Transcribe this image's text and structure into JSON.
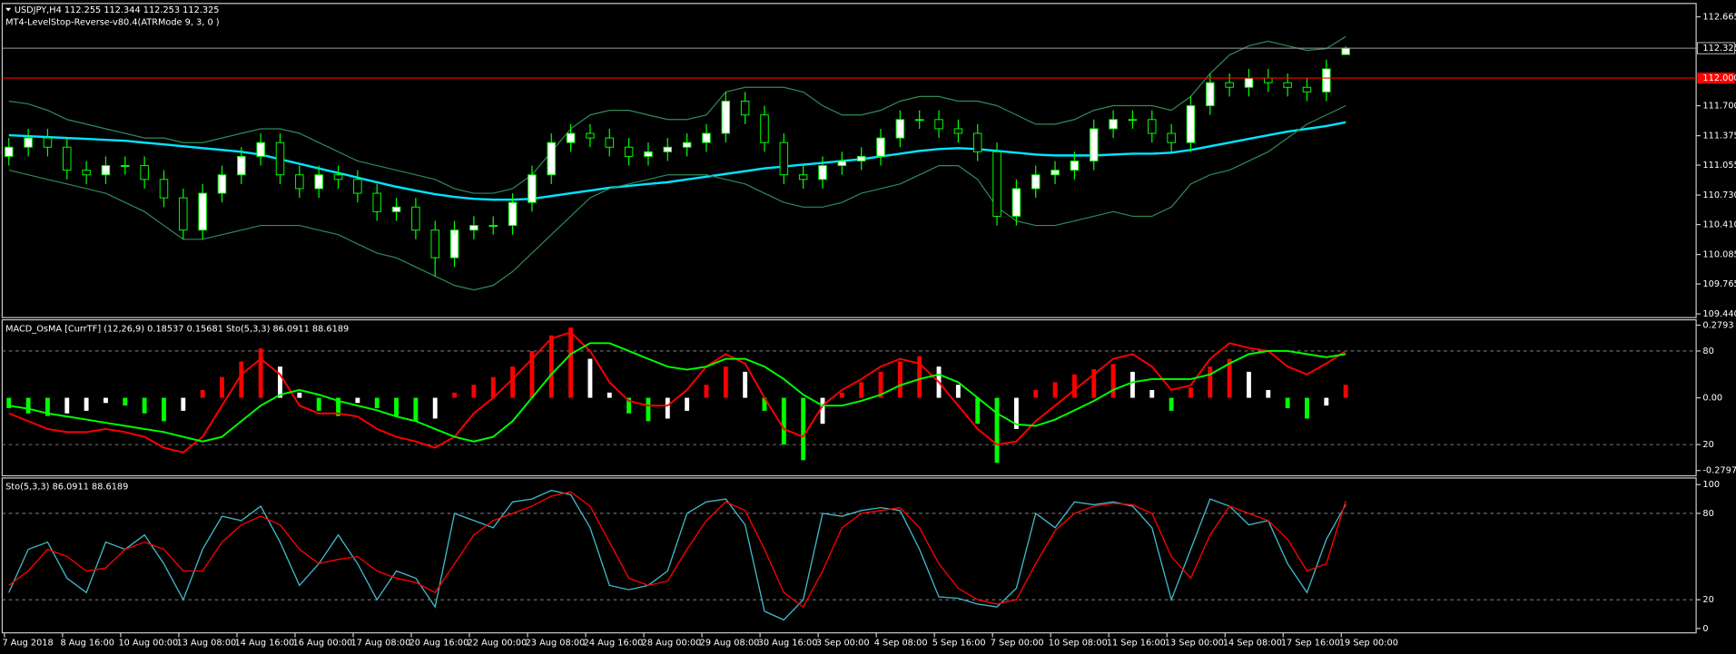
{
  "chart_data": [
    {
      "type": "candlestick",
      "title": "USDJPY,H4  112.255 112.344 112.253 112.325",
      "subtitle": "MT4-LevelStop-Reverse-v80.4(ATRMode 9, 3, 0 )",
      "categories": [
        "7 Aug 2018",
        null,
        null,
        "8 Aug 16:00",
        null,
        null,
        "10 Aug 00:00",
        null,
        null,
        "13 Aug 08:00",
        null,
        null,
        "14 Aug 16:00",
        null,
        null,
        "16 Aug 00:00",
        null,
        null,
        "17 Aug 08:00",
        null,
        null,
        "20 Aug 16:00",
        null,
        null,
        "22 Aug 00:00",
        null,
        null,
        "23 Aug 08:00",
        null,
        null,
        "24 Aug 16:00",
        null,
        null,
        "28 Aug 00:00",
        null,
        null,
        "29 Aug 08:00",
        null,
        null,
        "30 Aug 16:00",
        null,
        null,
        "3 Sep 00:00",
        null,
        null,
        "4 Sep 08:00",
        null,
        null,
        "5 Sep 16:00",
        null,
        null,
        "7 Sep 00:00",
        null,
        null,
        "10 Sep 08:00",
        null,
        null,
        "11 Sep 16:00",
        null,
        null,
        "13 Sep 00:00",
        null,
        null,
        "14 Sep 08:00",
        null,
        null,
        "17 Sep 16:00",
        null,
        null,
        "19 Sep 00:00"
      ],
      "open": [
        111.15,
        111.25,
        111.35,
        111.25,
        111.0,
        110.95,
        111.05,
        111.05,
        110.9,
        110.7,
        110.35,
        110.75,
        110.95,
        111.15,
        111.3,
        110.95,
        110.8,
        110.95,
        110.9,
        110.75,
        110.55,
        110.6,
        110.35,
        110.05,
        110.35,
        110.4,
        110.4,
        110.65,
        110.95,
        111.3,
        111.4,
        111.35,
        111.25,
        111.15,
        111.2,
        111.25,
        111.3,
        111.4,
        111.75,
        111.6,
        111.3,
        110.95,
        110.9,
        111.05,
        111.1,
        111.15,
        111.35,
        111.55,
        111.55,
        111.45,
        111.4,
        111.2,
        110.5,
        110.8,
        110.95,
        111.0,
        111.1,
        111.45,
        111.55,
        111.55,
        111.4,
        111.3,
        111.7,
        111.95,
        111.9,
        112.0,
        111.95,
        111.9,
        111.85,
        112.255
      ],
      "high": [
        111.35,
        111.45,
        111.45,
        111.35,
        111.1,
        111.15,
        111.15,
        111.15,
        111.0,
        110.8,
        110.85,
        111.05,
        111.25,
        111.4,
        111.4,
        111.05,
        111.05,
        111.05,
        111.0,
        110.85,
        110.7,
        110.7,
        110.45,
        110.45,
        110.5,
        110.5,
        110.75,
        111.05,
        111.4,
        111.5,
        111.5,
        111.45,
        111.35,
        111.3,
        111.35,
        111.4,
        111.5,
        111.85,
        111.85,
        111.7,
        111.4,
        111.05,
        111.15,
        111.2,
        111.25,
        111.45,
        111.65,
        111.65,
        111.65,
        111.55,
        111.5,
        111.3,
        110.9,
        111.05,
        111.1,
        111.2,
        111.55,
        111.65,
        111.65,
        111.65,
        111.5,
        111.8,
        112.05,
        112.05,
        112.1,
        112.1,
        112.05,
        112.0,
        112.2,
        112.344
      ],
      "low": [
        111.05,
        111.15,
        111.15,
        110.9,
        110.85,
        110.85,
        110.95,
        110.8,
        110.6,
        110.25,
        110.25,
        110.65,
        110.85,
        111.05,
        110.85,
        110.7,
        110.7,
        110.8,
        110.65,
        110.45,
        110.45,
        110.25,
        109.85,
        109.95,
        110.25,
        110.3,
        110.3,
        110.55,
        110.85,
        111.2,
        111.25,
        111.15,
        111.05,
        111.05,
        111.1,
        111.15,
        111.2,
        111.3,
        111.5,
        111.2,
        110.85,
        110.8,
        110.8,
        110.95,
        111.0,
        111.05,
        111.25,
        111.45,
        111.35,
        111.3,
        111.1,
        110.4,
        110.4,
        110.7,
        110.85,
        110.9,
        111.0,
        111.35,
        111.45,
        111.3,
        111.2,
        111.2,
        111.6,
        111.8,
        111.8,
        111.85,
        111.8,
        111.75,
        111.75,
        112.253
      ],
      "close": [
        111.25,
        111.35,
        111.25,
        111.0,
        110.95,
        111.05,
        111.05,
        110.9,
        110.7,
        110.35,
        110.75,
        110.95,
        111.15,
        111.3,
        110.95,
        110.8,
        110.95,
        110.9,
        110.75,
        110.55,
        110.6,
        110.35,
        110.05,
        110.35,
        110.4,
        110.4,
        110.65,
        110.95,
        111.3,
        111.4,
        111.35,
        111.25,
        111.15,
        111.2,
        111.25,
        111.3,
        111.4,
        111.75,
        111.6,
        111.3,
        110.95,
        110.9,
        111.05,
        111.1,
        111.15,
        111.35,
        111.55,
        111.55,
        111.45,
        111.4,
        111.2,
        110.5,
        110.8,
        110.95,
        111.0,
        111.1,
        111.45,
        111.55,
        111.55,
        111.4,
        111.3,
        111.7,
        111.95,
        111.9,
        112.0,
        111.95,
        111.9,
        111.85,
        112.1,
        112.325
      ],
      "up_color": "#ffffff",
      "down_color": "#000000",
      "wick_color": "#00ff00",
      "series": [
        {
          "color": "#00e5ff",
          "width": 2,
          "values": [
            111.38,
            111.37,
            111.36,
            111.35,
            111.34,
            111.33,
            111.32,
            111.3,
            111.28,
            111.26,
            111.24,
            111.22,
            111.2,
            111.17,
            111.12,
            111.07,
            111.02,
            110.97,
            110.92,
            110.87,
            110.82,
            110.78,
            110.74,
            110.71,
            110.69,
            110.68,
            110.68,
            110.69,
            110.72,
            110.75,
            110.78,
            110.81,
            110.83,
            110.85,
            110.87,
            110.9,
            110.93,
            110.96,
            110.99,
            111.02,
            111.04,
            111.06,
            111.08,
            111.1,
            111.12,
            111.15,
            111.18,
            111.21,
            111.23,
            111.24,
            111.23,
            111.21,
            111.19,
            111.17,
            111.16,
            111.16,
            111.16,
            111.17,
            111.18,
            111.18,
            111.19,
            111.22,
            111.26,
            111.3,
            111.34,
            111.38,
            111.42,
            111.45,
            111.48,
            111.52
          ]
        },
        {
          "color": "#2e8b57",
          "width": 1,
          "values": [
            111.75,
            111.72,
            111.65,
            111.55,
            111.5,
            111.45,
            111.4,
            111.35,
            111.35,
            111.3,
            111.3,
            111.35,
            111.4,
            111.45,
            111.45,
            111.4,
            111.3,
            111.2,
            111.1,
            111.05,
            111.0,
            110.95,
            110.9,
            110.8,
            110.75,
            110.75,
            110.8,
            110.95,
            111.2,
            111.45,
            111.6,
            111.65,
            111.65,
            111.6,
            111.55,
            111.55,
            111.6,
            111.85,
            111.9,
            111.9,
            111.9,
            111.85,
            111.7,
            111.6,
            111.6,
            111.65,
            111.75,
            111.8,
            111.8,
            111.75,
            111.75,
            111.7,
            111.6,
            111.5,
            111.5,
            111.55,
            111.65,
            111.7,
            111.7,
            111.7,
            111.65,
            111.8,
            112.05,
            112.25,
            112.35,
            112.4,
            112.35,
            112.3,
            112.32,
            112.45
          ]
        },
        {
          "color": "#2e8b57",
          "width": 1,
          "values": [
            111.0,
            110.95,
            110.9,
            110.85,
            110.8,
            110.75,
            110.65,
            110.55,
            110.4,
            110.25,
            110.25,
            110.3,
            110.35,
            110.4,
            110.4,
            110.4,
            110.35,
            110.3,
            110.2,
            110.1,
            110.05,
            109.95,
            109.85,
            109.75,
            109.7,
            109.75,
            109.9,
            110.1,
            110.3,
            110.5,
            110.7,
            110.8,
            110.85,
            110.9,
            110.95,
            110.95,
            110.95,
            110.9,
            110.85,
            110.75,
            110.65,
            110.6,
            110.6,
            110.65,
            110.75,
            110.8,
            110.85,
            110.95,
            111.05,
            111.05,
            110.9,
            110.6,
            110.45,
            110.4,
            110.4,
            110.45,
            110.5,
            110.55,
            110.5,
            110.5,
            110.6,
            110.85,
            110.95,
            111.0,
            111.1,
            111.2,
            111.35,
            111.5,
            111.6,
            111.7
          ]
        }
      ],
      "bid_line": {
        "value": 112.325,
        "color": "#9a9a9a"
      },
      "level_line": {
        "value": 112,
        "label": "112.000",
        "color": "#ff0000"
      },
      "ylim": [
        109.4,
        112.81
      ],
      "yticks": [
        112.665,
        {
          "value": 111.7,
          "label": "111.700"
        },
        111.375,
        111.055,
        {
          "value": 110.73,
          "label": "110.730"
        },
        {
          "value": 110.41,
          "label": "110.410"
        },
        110.085,
        109.765,
        {
          "value": 109.44,
          "label": "109.440"
        }
      ]
    },
    {
      "type": "bar",
      "title": "MACD_OsMA [CurrTF] (12,26,9) 0.18537 0.15681  Sto(5,3,3) 86.0911 88.6189",
      "values": [
        -0.04,
        -0.06,
        -0.07,
        -0.06,
        -0.05,
        -0.02,
        -0.03,
        -0.06,
        -0.09,
        -0.05,
        0.03,
        0.08,
        0.14,
        0.19,
        0.12,
        0.02,
        -0.05,
        -0.07,
        -0.02,
        -0.04,
        -0.07,
        -0.09,
        -0.08,
        0.02,
        0.05,
        0.08,
        0.12,
        0.18,
        0.24,
        0.27,
        0.15,
        0.02,
        -0.06,
        -0.09,
        -0.08,
        -0.05,
        0.05,
        0.12,
        0.1,
        -0.05,
        -0.18,
        -0.24,
        -0.1,
        0.02,
        0.06,
        0.1,
        0.14,
        0.16,
        0.12,
        0.05,
        -0.1,
        -0.25,
        -0.12,
        0.03,
        0.06,
        0.09,
        0.11,
        0.13,
        0.1,
        0.03,
        -0.05,
        0.04,
        0.12,
        0.15,
        0.1,
        0.03,
        -0.04,
        -0.08,
        -0.03,
        0.05
      ],
      "up_color": "#ff0000",
      "down_color": "#00ff00",
      "fade_color": "#ffffff",
      "series": [
        {
          "color": "#ff0000",
          "axis": "y2",
          "values": [
            40,
            35,
            30,
            28,
            28,
            30,
            28,
            25,
            18,
            15,
            25,
            45,
            65,
            75,
            65,
            45,
            40,
            40,
            38,
            30,
            25,
            22,
            18,
            25,
            40,
            50,
            62,
            75,
            88,
            92,
            80,
            60,
            48,
            45,
            45,
            55,
            70,
            78,
            72,
            50,
            30,
            25,
            45,
            55,
            62,
            70,
            75,
            72,
            60,
            45,
            30,
            20,
            22,
            35,
            45,
            55,
            65,
            75,
            78,
            70,
            55,
            58,
            75,
            85,
            82,
            80,
            70,
            65,
            72,
            80
          ]
        },
        {
          "color": "#00ff00",
          "axis": "y2",
          "values": [
            45,
            43,
            40,
            38,
            36,
            34,
            32,
            30,
            28,
            25,
            22,
            25,
            35,
            45,
            52,
            55,
            52,
            48,
            45,
            42,
            38,
            35,
            30,
            25,
            22,
            25,
            35,
            50,
            65,
            78,
            85,
            85,
            80,
            75,
            70,
            68,
            70,
            75,
            75,
            70,
            62,
            52,
            45,
            45,
            48,
            52,
            58,
            62,
            65,
            60,
            50,
            40,
            33,
            32,
            36,
            42,
            48,
            55,
            60,
            62,
            62,
            62,
            65,
            72,
            78,
            80,
            80,
            78,
            76,
            78
          ]
        }
      ],
      "ylim": [
        -0.3,
        0.3
      ],
      "yticks": [
        0.2793,
        {
          "value": 0,
          "label": "0.00"
        },
        -0.27971
      ],
      "y2lim": [
        0,
        100
      ],
      "y2ticks": [
        80,
        20
      ],
      "y2grid": true
    },
    {
      "type": "line",
      "title": "Sto(5,3,3) 86.0911 88.6189",
      "series": [
        {
          "color": "#3fb8c8",
          "values": [
            25,
            55,
            60,
            35,
            25,
            60,
            55,
            65,
            45,
            20,
            55,
            78,
            75,
            85,
            60,
            30,
            45,
            65,
            45,
            20,
            40,
            35,
            15,
            80,
            75,
            70,
            88,
            90,
            96,
            93,
            70,
            30,
            27,
            30,
            40,
            80,
            88,
            90,
            72,
            12,
            6,
            20,
            80,
            78,
            82,
            84,
            82,
            55,
            22,
            21,
            17,
            15,
            28,
            80,
            70,
            88,
            86,
            88,
            85,
            70,
            20,
            55,
            90,
            85,
            72,
            75,
            45,
            25,
            62,
            86.0911
          ]
        },
        {
          "color": "#ff0000",
          "values": [
            30,
            40,
            55,
            50,
            40,
            42,
            55,
            60,
            55,
            40,
            40,
            60,
            72,
            78,
            72,
            55,
            45,
            48,
            50,
            40,
            35,
            32,
            25,
            45,
            65,
            75,
            80,
            85,
            92,
            95,
            85,
            60,
            35,
            30,
            33,
            55,
            75,
            88,
            82,
            55,
            25,
            15,
            40,
            70,
            80,
            82,
            84,
            70,
            45,
            28,
            20,
            17,
            20,
            45,
            68,
            80,
            85,
            87,
            86,
            80,
            50,
            35,
            65,
            85,
            80,
            75,
            62,
            40,
            45,
            88.6189
          ]
        }
      ],
      "ylim": [
        -3,
        104.6
      ],
      "yticks": [
        100,
        80,
        20,
        0
      ],
      "grid": true
    }
  ]
}
